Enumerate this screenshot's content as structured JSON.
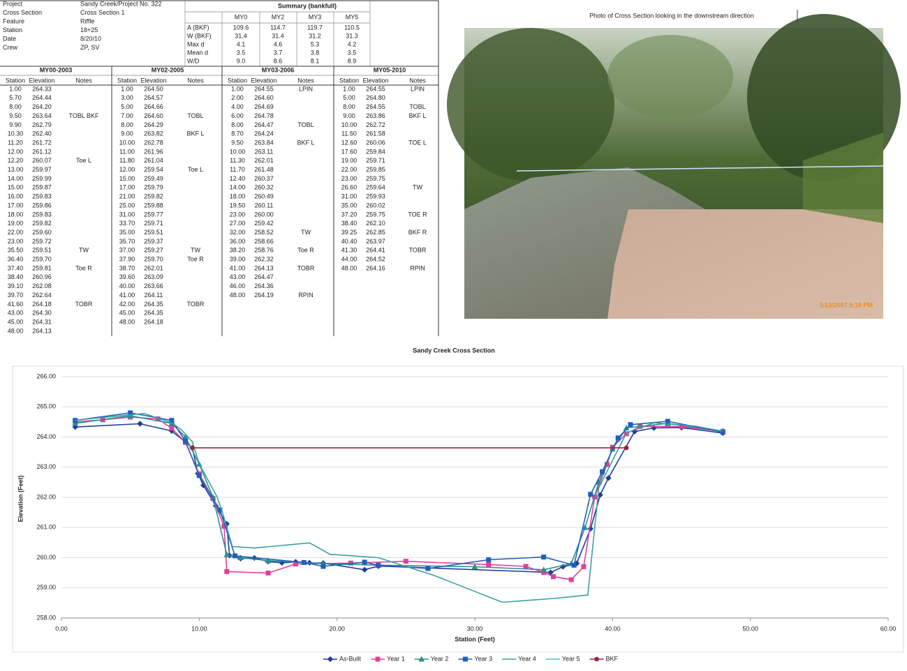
{
  "header": {
    "rows": [
      [
        "Project",
        "Sandy Creek/Project No. 322"
      ],
      [
        "Cross Section",
        "Cross Section 1"
      ],
      [
        "Feature",
        "Riffle"
      ],
      [
        "Station",
        "18+25"
      ],
      [
        "Date",
        "8/20/10"
      ],
      [
        "Crew",
        "ZP, SV"
      ]
    ]
  },
  "summary": {
    "title": "Summary (bankfull)",
    "columns": [
      "MY0",
      "MY2",
      "MY3",
      "MY5"
    ],
    "rows": [
      {
        "label": "A (BKF)",
        "values": [
          "109.6",
          "114.7",
          "119.7",
          "110.5"
        ]
      },
      {
        "label": "W (BKF)",
        "values": [
          "31.4",
          "31.4",
          "31.2",
          "31.3"
        ]
      },
      {
        "label": "Max d",
        "values": [
          "4.1",
          "4.6",
          "5.3",
          "4.2"
        ]
      },
      {
        "label": "Mean d",
        "values": [
          "3.5",
          "3.7",
          "3.8",
          "3.5"
        ]
      },
      {
        "label": "W/D",
        "values": [
          "9.0",
          "8.6",
          "8.1",
          "8.9"
        ]
      }
    ]
  },
  "tables": [
    {
      "title": "MY00-2003",
      "columns": [
        "Station",
        "Elevation",
        "Notes"
      ],
      "rows": [
        [
          "1.00",
          "264.33"
        ],
        [
          "5.70",
          "264.44"
        ],
        [
          "8.00",
          "264.20"
        ],
        [
          "9.50",
          "263.64",
          "TOBL BKF"
        ],
        [
          "9.90",
          "262.79"
        ],
        [
          "10.30",
          "262.40"
        ],
        [
          "11.20",
          "261.72"
        ],
        [
          "12.00",
          "261.12"
        ],
        [
          "12.20",
          "260.07",
          "Toe L"
        ],
        [
          "13.00",
          "259.97"
        ],
        [
          "14.00",
          "259.99"
        ],
        [
          "15.00",
          "259.87"
        ],
        [
          "16.00",
          "259.83"
        ],
        [
          "17.00",
          "259.86"
        ],
        [
          "18.00",
          "259.83"
        ],
        [
          "19.00",
          "259.82"
        ],
        [
          "22.00",
          "259.60"
        ],
        [
          "23.00",
          "259.72"
        ],
        [
          "35.50",
          "259.51",
          "TW"
        ],
        [
          "36.40",
          "259.70"
        ],
        [
          "37.40",
          "259.81",
          "Toe R"
        ],
        [
          "38.40",
          "260.96"
        ],
        [
          "39.10",
          "262.08"
        ],
        [
          "39.70",
          "262.64"
        ],
        [
          "41.60",
          "264.18",
          "TOBR"
        ],
        [
          "43.00",
          "264.30"
        ],
        [
          "45.00",
          "264.31"
        ],
        [
          "48.00",
          "264.13"
        ]
      ]
    },
    {
      "title": "MY02-2005",
      "columns": [
        "Station",
        "Elevation",
        "Notes"
      ],
      "rows": [
        [
          "1.00",
          "264.50"
        ],
        [
          "3.00",
          "264.57"
        ],
        [
          "5.00",
          "264.66"
        ],
        [
          "7.00",
          "264.60",
          "TOBL"
        ],
        [
          "8.00",
          "264.29"
        ],
        [
          "9.00",
          "263.82",
          "BKF L"
        ],
        [
          "10.00",
          "262.78"
        ],
        [
          "11.00",
          "261.96"
        ],
        [
          "11.80",
          "261.04"
        ],
        [
          "12.00",
          "259.54",
          "Toe L"
        ],
        [
          "15.00",
          "259.49"
        ],
        [
          "17.00",
          "259.79"
        ],
        [
          "21.00",
          "259.82"
        ],
        [
          "25.00",
          "259.88"
        ],
        [
          "31.00",
          "259.77"
        ],
        [
          "33.70",
          "259.71"
        ],
        [
          "35.00",
          "259.51"
        ],
        [
          "35.70",
          "259.37"
        ],
        [
          "37.00",
          "259.27",
          "TW"
        ],
        [
          "37.90",
          "259.70",
          "Toe R"
        ],
        [
          "38.70",
          "262.01"
        ],
        [
          "39.60",
          "263.09"
        ],
        [
          "40.00",
          "263.66"
        ],
        [
          "41.00",
          "264.11"
        ],
        [
          "42.00",
          "264.35",
          "TOBR"
        ],
        [
          "45.00",
          "264.35"
        ],
        [
          "48.00",
          "264.18"
        ]
      ]
    },
    {
      "title": "MY03-2006",
      "columns": [
        "Station",
        "Elevation",
        "Notes"
      ],
      "rows": [
        [
          "1.00",
          "264.55",
          "LPIN"
        ],
        [
          "2.00",
          "264.60"
        ],
        [
          "4.00",
          "264.69"
        ],
        [
          "6.00",
          "264.78"
        ],
        [
          "8.00",
          "264.47",
          "TOBL"
        ],
        [
          "8.70",
          "264.24"
        ],
        [
          "9.50",
          "263.84",
          "BKF L"
        ],
        [
          "10.00",
          "263.11"
        ],
        [
          "11.30",
          "262.01"
        ],
        [
          "11.70",
          "261.48"
        ],
        [
          "12.40",
          "260.37"
        ],
        [
          "14.00",
          "260.32"
        ],
        [
          "18.00",
          "260.49"
        ],
        [
          "19.50",
          "260.11"
        ],
        [
          "23.00",
          "260.00"
        ],
        [
          "27.00",
          "259.42"
        ],
        [
          "32.00",
          "258.52",
          "TW"
        ],
        [
          "36.00",
          "258.66"
        ],
        [
          "38.20",
          "258.76",
          "Toe R"
        ],
        [
          "39.00",
          "262.32"
        ],
        [
          "41.00",
          "264.13",
          "TOBR"
        ],
        [
          "43.00",
          "264.47"
        ],
        [
          "46.00",
          "264.36"
        ],
        [
          "48.00",
          "264.19",
          "RPIN"
        ]
      ]
    },
    {
      "title": "MY05-2010",
      "columns": [
        "Station",
        "Elevation",
        "Notes"
      ],
      "rows": [
        [
          "1.00",
          "264.55",
          "LPIN"
        ],
        [
          "5.00",
          "264.80"
        ],
        [
          "8.00",
          "264.55",
          "TOBL"
        ],
        [
          "9.00",
          "263.86",
          "BKF L"
        ],
        [
          "10.00",
          "262.72"
        ],
        [
          "11.50",
          "261.58"
        ],
        [
          "12.60",
          "260.06",
          "TOE L"
        ],
        [
          "17.60",
          "259.84"
        ],
        [
          "19.00",
          "259.71"
        ],
        [
          "22.00",
          "259.85"
        ],
        [
          "23.00",
          "259.75"
        ],
        [
          "26.60",
          "259.64",
          "TW"
        ],
        [
          "31.00",
          "259.93"
        ],
        [
          "35.00",
          "260.02"
        ],
        [
          "37.20",
          "259.75",
          "TOE R"
        ],
        [
          "38.40",
          "262.10"
        ],
        [
          "39.25",
          "262.85",
          "BKF R"
        ],
        [
          "40.40",
          "263.97"
        ],
        [
          "41.30",
          "264.41",
          "TOBR"
        ],
        [
          "44.00",
          "264.52"
        ],
        [
          "48.00",
          "264.16",
          "RPIN"
        ]
      ]
    }
  ],
  "photo": {
    "caption": "Photo of Cross Section  looking in the downstream direction",
    "timestamp": "1/13/2007 5:18 PM"
  },
  "chart_data": {
    "type": "line",
    "title": "Sandy Creek Cross Section",
    "x_label": "Station (Feet)",
    "y_label": "Elevation (Feet)",
    "xlim": [
      0,
      60
    ],
    "xticks": [
      {
        "value": 0,
        "label": "0.00"
      },
      {
        "value": 10,
        "label": "10.00"
      },
      {
        "value": 20,
        "label": "20.00"
      },
      {
        "value": 30,
        "label": "30.00"
      },
      {
        "value": 40,
        "label": "40.00"
      },
      {
        "value": 50,
        "label": "50.00"
      },
      {
        "value": 60,
        "label": "60.00"
      }
    ],
    "ylim": [
      258,
      266
    ],
    "yticks": [
      {
        "value": 258,
        "label": "258.00"
      },
      {
        "value": 259,
        "label": "259.00"
      },
      {
        "value": 260,
        "label": "260.00"
      },
      {
        "value": 261,
        "label": "261.00"
      },
      {
        "value": 262,
        "label": "262.00"
      },
      {
        "value": 263,
        "label": "263.00"
      },
      {
        "value": 264,
        "label": "264.00"
      },
      {
        "value": 265,
        "label": "265.00"
      },
      {
        "value": 266,
        "label": "266.00"
      }
    ],
    "grid": true,
    "legend": "bottom",
    "series": [
      {
        "name": "As-Built",
        "color": "#1f3d99",
        "marker": "diamond",
        "x": [
          1.0,
          5.7,
          8.0,
          9.5,
          9.9,
          10.3,
          11.2,
          12.0,
          12.2,
          13.0,
          14.0,
          15.0,
          16.0,
          17.0,
          18.0,
          19.0,
          22.0,
          23.0,
          35.5,
          36.4,
          37.4,
          38.4,
          39.1,
          39.7,
          41.6,
          43.0,
          45.0,
          48.0
        ],
        "values": [
          264.33,
          264.44,
          264.2,
          263.64,
          262.79,
          262.4,
          261.72,
          261.12,
          260.07,
          259.97,
          259.99,
          259.87,
          259.83,
          259.86,
          259.83,
          259.82,
          259.6,
          259.72,
          259.51,
          259.7,
          259.81,
          260.96,
          262.08,
          262.64,
          264.18,
          264.3,
          264.31,
          264.13
        ]
      },
      {
        "name": "Year 1",
        "color": "#e0409a",
        "marker": "square",
        "x": [
          1.0,
          3.0,
          5.0,
          7.0,
          8.0,
          9.0,
          10.0,
          11.0,
          11.8,
          12.0,
          15.0,
          17.0,
          21.0,
          25.0,
          31.0,
          33.7,
          35.0,
          35.7,
          37.0,
          37.9,
          38.7,
          39.6,
          40.0,
          41.0,
          42.0,
          45.0,
          48.0
        ],
        "values": [
          264.5,
          264.57,
          264.66,
          264.6,
          264.29,
          263.82,
          262.78,
          261.96,
          261.04,
          259.54,
          259.49,
          259.79,
          259.82,
          259.88,
          259.77,
          259.71,
          259.51,
          259.37,
          259.27,
          259.7,
          262.01,
          263.09,
          263.66,
          264.11,
          264.35,
          264.35,
          264.18
        ]
      },
      {
        "name": "Year 2",
        "color": "#2a8f8f",
        "marker": "triangle",
        "x": [
          1.0,
          5.0,
          8.0,
          9.0,
          10.0,
          11.0,
          12.0,
          13.0,
          15.0,
          19.0,
          23.0,
          30.0,
          35.0,
          37.0,
          38.0,
          39.0,
          40.0,
          41.0,
          44.0,
          48.0
        ],
        "values": [
          264.45,
          264.7,
          264.45,
          264.0,
          263.1,
          262.0,
          260.1,
          260.0,
          259.9,
          259.8,
          259.75,
          259.7,
          259.6,
          259.8,
          261.0,
          262.5,
          263.6,
          264.3,
          264.45,
          264.2
        ]
      },
      {
        "name": "Year 3",
        "color": "#1f5fbf",
        "marker": "square",
        "x": [
          1.0,
          5.0,
          8.0,
          9.0,
          10.0,
          11.5,
          12.6,
          17.6,
          19.0,
          22.0,
          23.0,
          26.6,
          31.0,
          35.0,
          37.2,
          38.4,
          39.25,
          40.4,
          41.3,
          44.0,
          48.0
        ],
        "values": [
          264.55,
          264.8,
          264.55,
          263.86,
          262.72,
          261.58,
          260.06,
          259.84,
          259.71,
          259.85,
          259.75,
          259.64,
          259.93,
          260.02,
          259.75,
          262.1,
          262.85,
          263.97,
          264.41,
          264.52,
          264.16
        ]
      },
      {
        "name": "Year 4",
        "color": "#3aa0a0",
        "marker": "none",
        "x": [
          1.0,
          2.0,
          4.0,
          6.0,
          8.0,
          8.7,
          9.5,
          10.0,
          11.3,
          11.7,
          12.4,
          14.0,
          18.0,
          19.5,
          23.0,
          27.0,
          32.0,
          36.0,
          38.2,
          39.0,
          41.0,
          43.0,
          46.0,
          48.0
        ],
        "values": [
          264.55,
          264.6,
          264.69,
          264.78,
          264.47,
          264.24,
          263.84,
          263.11,
          262.01,
          261.48,
          260.37,
          260.32,
          260.49,
          260.11,
          260.0,
          259.42,
          258.52,
          258.66,
          258.76,
          262.32,
          264.13,
          264.47,
          264.36,
          264.19
        ]
      },
      {
        "name": "Year 5",
        "color": "#40c0d8",
        "marker": "none",
        "x": [],
        "values": []
      },
      {
        "name": "BKF",
        "color": "#a0203a",
        "marker": "circle",
        "x": [
          9.5,
          41.0
        ],
        "values": [
          263.64,
          263.64
        ]
      }
    ]
  }
}
